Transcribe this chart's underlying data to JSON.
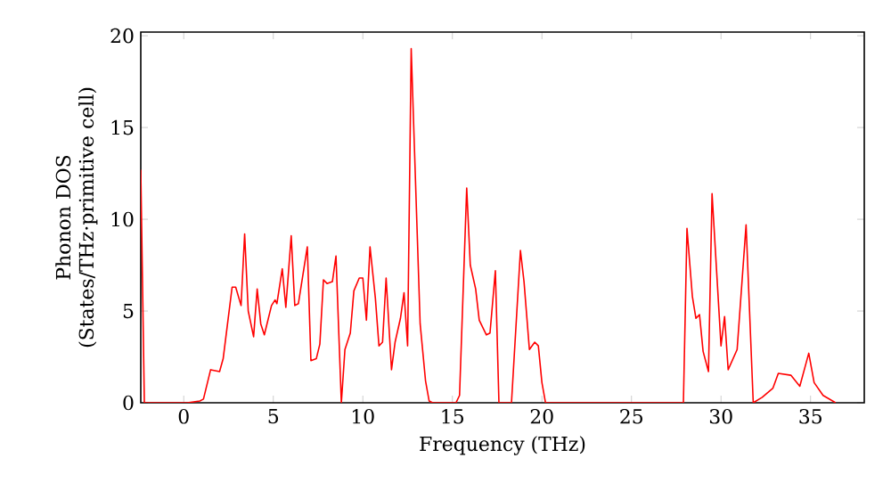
{
  "chart_data": {
    "type": "line",
    "xlabel": "Frequency (THz)",
    "ylabel": "Phonon DOS (States/THz·primitive cell)",
    "xlim": [
      -2.4,
      38
    ],
    "ylim": [
      0,
      20.2
    ],
    "xticks": [
      0,
      5,
      10,
      15,
      20,
      25,
      30,
      35
    ],
    "yticks": [
      0,
      5,
      10,
      15,
      20
    ],
    "grid": false,
    "marker": "none",
    "line_style": "solid",
    "series": [
      {
        "color": "#ff0000",
        "x": [
          -2.4,
          -2.2,
          0.2,
          0.9,
          1.1,
          1.5,
          2.0,
          2.2,
          2.7,
          2.9,
          3.2,
          3.4,
          3.6,
          3.9,
          4.1,
          4.3,
          4.5,
          4.9,
          5.1,
          5.2,
          5.5,
          5.7,
          6.0,
          6.2,
          6.4,
          6.9,
          7.1,
          7.4,
          7.6,
          7.8,
          8.0,
          8.3,
          8.5,
          8.8,
          9.0,
          9.3,
          9.5,
          9.8,
          10.0,
          10.2,
          10.4,
          10.7,
          10.9,
          11.1,
          11.3,
          11.6,
          11.8,
          12.1,
          12.3,
          12.5,
          12.7,
          13.2,
          13.5,
          13.7,
          13.9,
          15.2,
          15.4,
          15.8,
          16.0,
          16.3,
          16.5,
          16.9,
          17.1,
          17.4,
          17.6,
          18.3,
          18.8,
          19.0,
          19.3,
          19.6,
          19.8,
          20.0,
          20.2,
          27.9,
          28.1,
          28.4,
          28.6,
          28.8,
          29.0,
          29.3,
          29.5,
          30.0,
          30.2,
          30.4,
          30.9,
          31.4,
          31.8,
          32.3,
          32.9,
          33.2,
          33.9,
          34.4,
          34.9,
          35.2,
          35.7,
          36.4
        ],
        "values": [
          12.7,
          0,
          0,
          0.1,
          0.2,
          1.8,
          1.7,
          2.4,
          6.3,
          6.3,
          5.3,
          9.2,
          5.0,
          3.6,
          6.2,
          4.3,
          3.7,
          5.3,
          5.6,
          5.4,
          7.3,
          5.2,
          9.1,
          5.3,
          5.4,
          8.5,
          2.3,
          2.4,
          3.2,
          6.7,
          6.5,
          6.6,
          8.0,
          0,
          2.9,
          3.8,
          6.1,
          6.8,
          6.8,
          4.5,
          8.5,
          5.7,
          3.1,
          3.3,
          6.8,
          1.8,
          3.3,
          4.6,
          6.0,
          3.1,
          19.3,
          4.3,
          1.2,
          0.1,
          0,
          0,
          0.4,
          11.7,
          7.5,
          6.2,
          4.5,
          3.7,
          3.8,
          7.2,
          0,
          0,
          8.3,
          6.6,
          2.9,
          3.3,
          3.1,
          1.1,
          0,
          0,
          9.5,
          5.8,
          4.6,
          4.8,
          2.8,
          1.7,
          11.4,
          3.1,
          4.7,
          1.8,
          2.9,
          9.7,
          0,
          0.3,
          0.8,
          1.6,
          1.5,
          0.9,
          2.7,
          1.1,
          0.4,
          0
        ]
      }
    ]
  }
}
